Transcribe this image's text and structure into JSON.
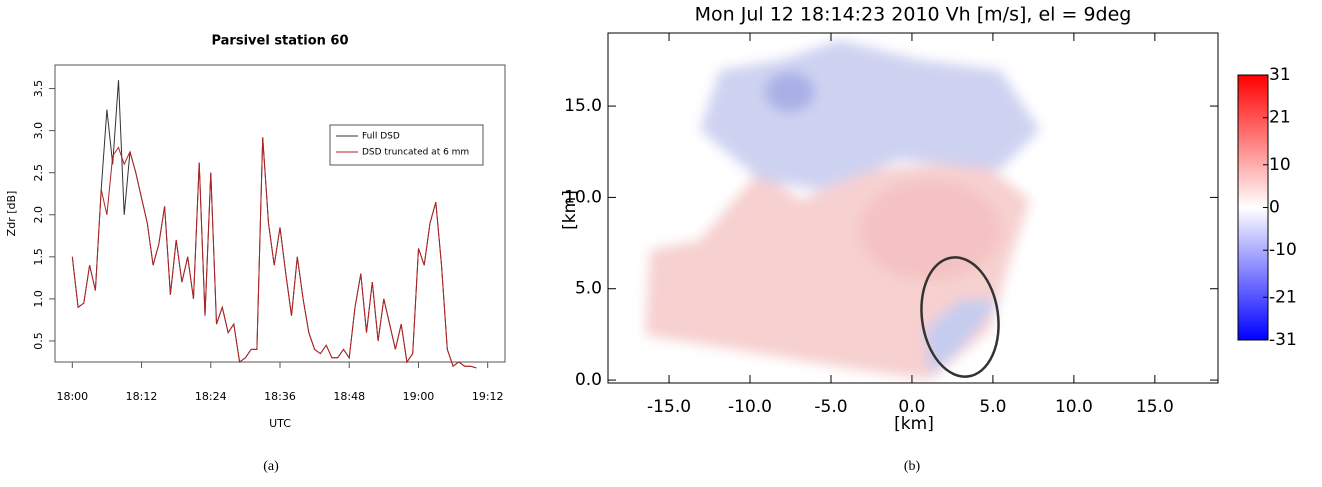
{
  "chart_data": [
    {
      "type": "line",
      "title": "Parsivel station 60",
      "xlabel": "UTC",
      "ylabel": "Zdr [dB]",
      "caption": "(a)",
      "x": [
        "18:00",
        "18:01",
        "18:02",
        "18:03",
        "18:04",
        "18:05",
        "18:06",
        "18:07",
        "18:08",
        "18:09",
        "18:10",
        "18:11",
        "18:12",
        "18:13",
        "18:14",
        "18:15",
        "18:16",
        "18:17",
        "18:18",
        "18:19",
        "18:20",
        "18:21",
        "18:22",
        "18:23",
        "18:24",
        "18:25",
        "18:26",
        "18:27",
        "18:28",
        "18:29",
        "18:30",
        "18:31",
        "18:32",
        "18:33",
        "18:34",
        "18:35",
        "18:36",
        "18:37",
        "18:38",
        "18:39",
        "18:40",
        "18:41",
        "18:42",
        "18:43",
        "18:44",
        "18:45",
        "18:46",
        "18:47",
        "18:48",
        "18:49",
        "18:50",
        "18:51",
        "18:52",
        "18:53",
        "18:54",
        "18:55",
        "18:56",
        "18:57",
        "18:58",
        "18:59",
        "19:00",
        "19:01",
        "19:02",
        "19:03",
        "19:04",
        "19:05",
        "19:06",
        "19:07",
        "19:08",
        "19:09",
        "19:10"
      ],
      "series": [
        {
          "name": "Full DSD",
          "color": "#333333",
          "values": [
            1.5,
            0.9,
            0.95,
            1.4,
            1.1,
            2.3,
            3.25,
            2.6,
            3.6,
            2.0,
            2.75,
            2.5,
            2.2,
            1.9,
            1.4,
            1.65,
            2.1,
            1.05,
            1.7,
            1.2,
            1.5,
            1.0,
            2.62,
            0.8,
            2.5,
            0.7,
            0.9,
            0.6,
            0.7,
            0.25,
            0.3,
            0.4,
            0.4,
            2.92,
            1.9,
            1.4,
            1.85,
            1.3,
            0.8,
            1.5,
            1.0,
            0.6,
            0.4,
            0.35,
            0.45,
            0.3,
            0.3,
            0.4,
            0.3,
            0.9,
            1.3,
            0.6,
            1.2,
            0.5,
            1.0,
            0.7,
            0.4,
            0.7,
            0.25,
            0.35,
            1.6,
            1.4,
            1.9,
            2.15,
            1.4,
            0.4,
            0.2,
            0.25,
            0.2,
            0.2,
            0.18
          ]
        },
        {
          "name": "DSD truncated at 6 mm",
          "color": "#b22222",
          "values": [
            1.5,
            0.9,
            0.95,
            1.4,
            1.1,
            2.3,
            2.0,
            2.7,
            2.8,
            2.6,
            2.75,
            2.5,
            2.2,
            1.9,
            1.4,
            1.65,
            2.1,
            1.05,
            1.7,
            1.2,
            1.5,
            1.0,
            2.62,
            0.8,
            2.5,
            0.7,
            0.9,
            0.6,
            0.7,
            0.25,
            0.3,
            0.4,
            0.4,
            2.92,
            1.9,
            1.4,
            1.85,
            1.3,
            0.8,
            1.5,
            1.0,
            0.6,
            0.4,
            0.35,
            0.45,
            0.3,
            0.3,
            0.4,
            0.3,
            0.9,
            1.3,
            0.6,
            1.2,
            0.5,
            1.0,
            0.7,
            0.4,
            0.7,
            0.25,
            0.35,
            1.6,
            1.4,
            1.9,
            2.15,
            1.4,
            0.4,
            0.2,
            0.25,
            0.2,
            0.2,
            0.18
          ]
        }
      ],
      "xlim": [
        "17:57",
        "19:15"
      ],
      "xticks": [
        "18:00",
        "18:12",
        "18:24",
        "18:36",
        "18:48",
        "19:00",
        "19:12"
      ],
      "ylim": [
        0.25,
        3.78
      ],
      "yticks": [
        0.5,
        {
          "value": 1,
          "label": "1.0"
        },
        1.5,
        {
          "value": 2,
          "label": "2.0"
        },
        2.5,
        {
          "value": 3,
          "label": "3.0"
        },
        3.5
      ],
      "legend": "upper right"
    },
    {
      "type": "image",
      "title": "Mon Jul 12 18:14:23 2010 Vh [m/s], el = 9deg",
      "xlabel": "[km]",
      "ylabel": "[km]",
      "caption": "(b)",
      "xlim": [
        -18.77,
        18.9
      ],
      "xticks": [
        {
          "value": -15,
          "label": "-15.0"
        },
        {
          "value": -10,
          "label": "-10.0"
        },
        {
          "value": -5,
          "label": "-5.0"
        },
        {
          "value": 0,
          "label": "0.0"
        },
        {
          "value": 5,
          "label": "5.0"
        },
        {
          "value": 10,
          "label": "10.0"
        },
        {
          "value": 15,
          "label": "15.0"
        }
      ],
      "ylim": [
        -0.16,
        19.0
      ],
      "yticks": [
        {
          "value": 0,
          "label": "0.0"
        },
        {
          "value": 5,
          "label": "5.0"
        },
        {
          "value": 10,
          "label": "10.0"
        },
        {
          "value": 15,
          "label": "15.0"
        }
      ],
      "colorbar": {
        "clim": [
          -31,
          31
        ],
        "ticks": [
          31,
          21,
          10,
          0,
          -10,
          -21,
          -31
        ],
        "colors": [
          "#0000ff",
          "#ffffff",
          "#ff0000"
        ]
      }
    }
  ]
}
